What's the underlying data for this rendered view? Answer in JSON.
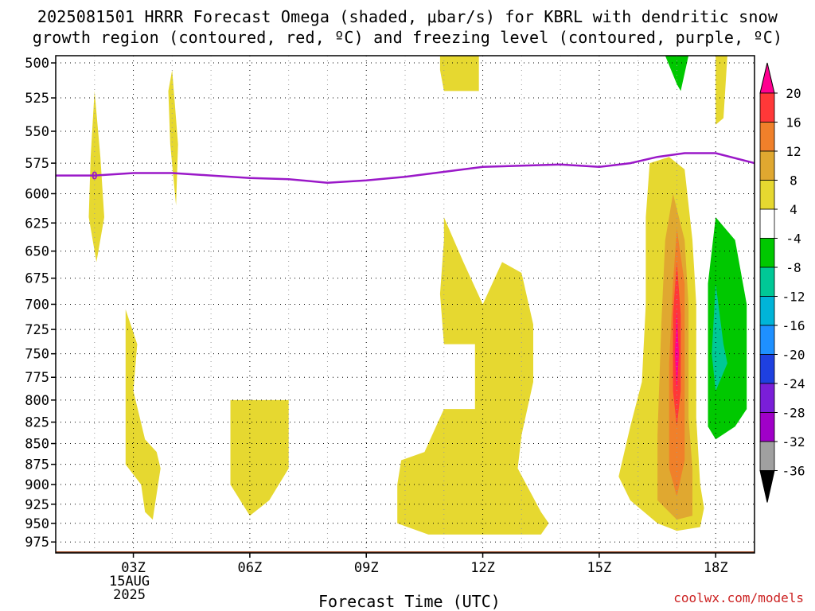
{
  "title_line1": "2025081501 HRRR Forecast Omega (shaded, μbar/s) for KBRL with dendritic snow",
  "title_line2": "growth region (contoured, red, ºC) and freezing level (contoured, purple, ºC)",
  "credit": "coolwx.com/models",
  "chart_data": {
    "type": "time-height cross-section",
    "title": "2025081501 HRRR Forecast Omega (shaded, μbar/s) for KBRL with dendritic snow growth region (contoured, red, ºC) and freezing level (contoured, purple, ºC)",
    "xlabel": "Forecast Time (UTC)",
    "ylabel": "",
    "x_axis": {
      "ticks": [
        {
          "hour": 3,
          "label": "03Z",
          "date_label": "15AUG",
          "year_label": "2025"
        },
        {
          "hour": 6,
          "label": "06Z"
        },
        {
          "hour": 9,
          "label": "09Z"
        },
        {
          "hour": 12,
          "label": "12Z"
        },
        {
          "hour": 15,
          "label": "15Z"
        },
        {
          "hour": 18,
          "label": "18Z"
        }
      ],
      "range_hours": [
        1,
        19
      ]
    },
    "y_axis": {
      "ticks": [
        500,
        525,
        550,
        575,
        600,
        625,
        650,
        675,
        700,
        725,
        750,
        775,
        800,
        825,
        850,
        875,
        900,
        925,
        950,
        975
      ],
      "range_hpa": [
        495,
        990
      ],
      "scale": "log",
      "inverted": true
    },
    "grid": true,
    "colorbar": {
      "labels": [
        "20",
        "16",
        "12",
        "8",
        "4",
        "-4",
        "-8",
        "-12",
        "-16",
        "-20",
        "-24",
        "-28",
        "-32",
        "-36"
      ],
      "colors": [
        "#ff0090",
        "#ff3838",
        "#f0802a",
        "#e0a830",
        "#e6d830",
        "#ffffff",
        "#00c800",
        "#00c896",
        "#00b4d8",
        "#1e90ff",
        "#1e40e0",
        "#7a1ed8",
        "#a000c8",
        "#a0a0a0"
      ],
      "extend_top_color": "#ff0090",
      "extend_bottom_color": "#000000"
    },
    "freezing_level": {
      "label": "0",
      "points": [
        [
          1.0,
          585
        ],
        [
          2.0,
          585
        ],
        [
          3.0,
          583
        ],
        [
          4.0,
          583
        ],
        [
          5.0,
          585
        ],
        [
          6.0,
          587
        ],
        [
          7.0,
          588
        ],
        [
          8.0,
          591
        ],
        [
          9.0,
          589
        ],
        [
          10.0,
          586
        ],
        [
          11.0,
          582
        ],
        [
          12.0,
          578
        ],
        [
          13.0,
          577
        ],
        [
          14.0,
          576
        ],
        [
          15.0,
          578
        ],
        [
          15.8,
          575
        ],
        [
          16.5,
          570
        ],
        [
          17.2,
          567
        ],
        [
          18.0,
          567
        ],
        [
          19.0,
          575
        ]
      ]
    },
    "terrain_pressure_hpa": 990,
    "omega_regions": [
      {
        "level": "4 to 8",
        "polygon": [
          [
            2.0,
            520
          ],
          [
            2.15,
            570
          ],
          [
            2.25,
            620
          ],
          [
            2.05,
            660
          ],
          [
            1.85,
            620
          ],
          [
            1.9,
            570
          ]
        ]
      },
      {
        "level": "4 to 8",
        "polygon": [
          [
            4.0,
            505
          ],
          [
            4.15,
            560
          ],
          [
            4.1,
            610
          ],
          [
            3.95,
            560
          ],
          [
            3.9,
            520
          ]
        ]
      },
      {
        "level": "4 to 8",
        "polygon": [
          [
            10.9,
            495
          ],
          [
            11.9,
            495
          ],
          [
            11.9,
            520
          ],
          [
            11.0,
            520
          ],
          [
            10.9,
            505
          ]
        ]
      },
      {
        "level": "4 to 8",
        "polygon": [
          [
            18.0,
            495
          ],
          [
            18.3,
            495
          ],
          [
            18.2,
            540
          ],
          [
            18.0,
            545
          ]
        ]
      },
      {
        "level": "4 to 8",
        "polygon": [
          [
            2.8,
            705
          ],
          [
            3.1,
            740
          ],
          [
            3.0,
            790
          ],
          [
            3.3,
            845
          ],
          [
            3.6,
            860
          ],
          [
            3.7,
            880
          ],
          [
            3.5,
            945
          ],
          [
            3.3,
            935
          ],
          [
            3.2,
            900
          ],
          [
            2.8,
            875
          ],
          [
            2.8,
            760
          ]
        ]
      },
      {
        "level": "4 to 8",
        "polygon": [
          [
            5.5,
            800
          ],
          [
            7.0,
            800
          ],
          [
            7.0,
            880
          ],
          [
            6.5,
            920
          ],
          [
            6.0,
            940
          ],
          [
            5.5,
            900
          ],
          [
            5.5,
            850
          ]
        ]
      },
      {
        "level": "4 to 8",
        "polygon": [
          [
            11.0,
            620
          ],
          [
            11.5,
            660
          ],
          [
            12.0,
            700
          ],
          [
            12.5,
            660
          ],
          [
            13.0,
            670
          ],
          [
            13.3,
            720
          ],
          [
            13.3,
            780
          ],
          [
            13.0,
            840
          ],
          [
            12.9,
            880
          ],
          [
            13.5,
            935
          ],
          [
            13.7,
            950
          ],
          [
            13.5,
            965
          ],
          [
            12.5,
            965
          ],
          [
            10.6,
            965
          ],
          [
            9.8,
            950
          ],
          [
            9.8,
            900
          ],
          [
            9.9,
            870
          ],
          [
            10.5,
            860
          ],
          [
            11.0,
            810
          ],
          [
            11.8,
            810
          ],
          [
            11.8,
            740
          ],
          [
            11.0,
            740
          ],
          [
            10.9,
            690
          ],
          [
            11.0,
            640
          ]
        ]
      },
      {
        "level": "4 to 8",
        "polygon": [
          [
            16.3,
            575
          ],
          [
            16.8,
            570
          ],
          [
            17.2,
            580
          ],
          [
            17.4,
            640
          ],
          [
            17.5,
            700
          ],
          [
            17.5,
            820
          ],
          [
            17.6,
            900
          ],
          [
            17.7,
            930
          ],
          [
            17.6,
            955
          ],
          [
            17.0,
            960
          ],
          [
            16.5,
            950
          ],
          [
            15.8,
            920
          ],
          [
            15.5,
            890
          ],
          [
            15.8,
            830
          ],
          [
            16.1,
            780
          ],
          [
            16.2,
            700
          ],
          [
            16.2,
            620
          ]
        ]
      },
      {
        "level": "8 to 12",
        "polygon": [
          [
            16.9,
            600
          ],
          [
            17.2,
            640
          ],
          [
            17.3,
            700
          ],
          [
            17.3,
            820
          ],
          [
            17.4,
            880
          ],
          [
            17.4,
            940
          ],
          [
            17.0,
            945
          ],
          [
            16.5,
            920
          ],
          [
            16.5,
            840
          ],
          [
            16.6,
            720
          ],
          [
            16.7,
            640
          ]
        ]
      },
      {
        "level": "12 to 16",
        "polygon": [
          [
            17.0,
            630
          ],
          [
            17.2,
            680
          ],
          [
            17.2,
            800
          ],
          [
            17.2,
            870
          ],
          [
            17.0,
            915
          ],
          [
            16.8,
            880
          ],
          [
            16.8,
            760
          ],
          [
            16.9,
            680
          ]
        ]
      },
      {
        "level": "16 to 20",
        "polygon": [
          [
            17.0,
            660
          ],
          [
            17.1,
            710
          ],
          [
            17.1,
            790
          ],
          [
            17.0,
            830
          ],
          [
            16.9,
            790
          ],
          [
            16.9,
            710
          ]
        ]
      },
      {
        "level": ">20",
        "polygon": [
          [
            17.0,
            705
          ],
          [
            17.05,
            750
          ],
          [
            17.0,
            790
          ],
          [
            16.95,
            750
          ]
        ]
      },
      {
        "level": "-4 to -8",
        "polygon": [
          [
            16.7,
            495
          ],
          [
            17.3,
            495
          ],
          [
            17.1,
            520
          ],
          [
            17.0,
            515
          ]
        ]
      },
      {
        "level": "-4 to -8",
        "polygon": [
          [
            18.0,
            620
          ],
          [
            18.5,
            640
          ],
          [
            18.8,
            700
          ],
          [
            18.8,
            810
          ],
          [
            18.5,
            830
          ],
          [
            18.0,
            845
          ],
          [
            17.8,
            830
          ],
          [
            17.8,
            680
          ]
        ]
      },
      {
        "level": "-8 to -12",
        "polygon": [
          [
            18.0,
            680
          ],
          [
            18.2,
            740
          ],
          [
            18.3,
            760
          ],
          [
            18.0,
            790
          ],
          [
            17.9,
            750
          ]
        ]
      }
    ]
  }
}
